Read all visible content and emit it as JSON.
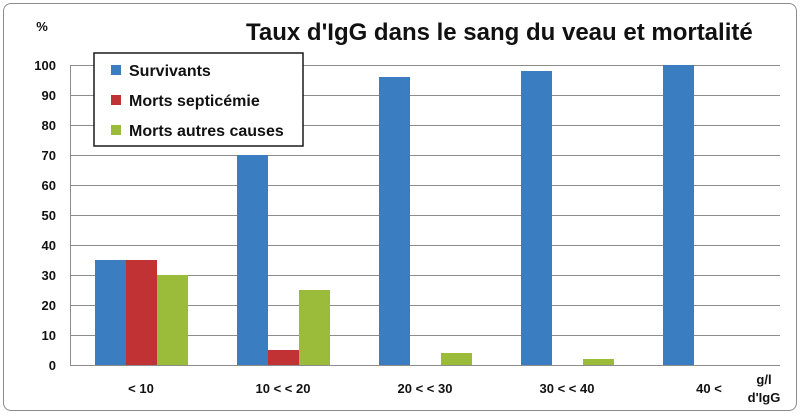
{
  "chart_data": {
    "type": "bar",
    "title": "Taux d'IgG dans le sang du veau et mortalité",
    "ylabel": "%",
    "xlabel_line1": "g/l",
    "xlabel_line2": "d'IgG",
    "categories": [
      "< 10",
      "10 < < 20",
      "20 < < 30",
      "30 < < 40",
      "40 <"
    ],
    "series": [
      {
        "name": "Survivants",
        "color": "#3a7dc0",
        "values": [
          35,
          70,
          96,
          98,
          100
        ]
      },
      {
        "name": "Morts septicémie",
        "color": "#c03233",
        "values": [
          35,
          5,
          0,
          0,
          0
        ]
      },
      {
        "name": "Morts autres causes",
        "color": "#9bbb3b",
        "values": [
          30,
          25,
          4,
          2,
          0
        ]
      }
    ],
    "ylim": [
      0,
      100
    ],
    "yticks": [
      0,
      10,
      20,
      30,
      40,
      50,
      60,
      70,
      80,
      90,
      100
    ],
    "grid": true,
    "legend_position": "top-left"
  }
}
